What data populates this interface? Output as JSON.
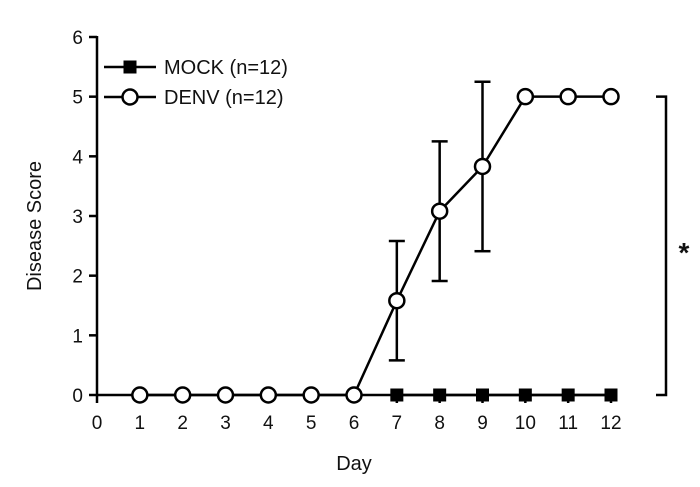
{
  "chart_data": {
    "type": "line",
    "xlabel": "Day",
    "ylabel": "Disease Score",
    "xlim": [
      0,
      12
    ],
    "ylim": [
      0,
      6
    ],
    "x_ticks": [
      0,
      1,
      2,
      3,
      4,
      5,
      6,
      7,
      8,
      9,
      10,
      11,
      12
    ],
    "y_ticks": [
      0,
      1,
      2,
      3,
      4,
      5,
      6
    ],
    "grid": false,
    "legend_position": "top-left",
    "series": [
      {
        "name": "MOCK (n=12)",
        "marker": "filled-square",
        "color": "#000000",
        "x": [
          7,
          8,
          9,
          10,
          11,
          12
        ],
        "y": [
          0,
          0,
          0,
          0,
          0,
          0
        ]
      },
      {
        "name": "DENV  (n=12)",
        "marker": "open-circle",
        "color": "#000000",
        "x": [
          1,
          2,
          3,
          4,
          5,
          6,
          7,
          8,
          9,
          10,
          11,
          12
        ],
        "y": [
          0,
          0,
          0,
          0,
          0,
          0,
          1.58,
          3.08,
          3.83,
          5,
          5,
          5
        ],
        "error": [
          0,
          0,
          0,
          0,
          0,
          0,
          1.0,
          1.17,
          1.42,
          0,
          0,
          0
        ]
      }
    ],
    "annotation": {
      "text": "*",
      "bracket_from": 0,
      "bracket_to": 5
    }
  }
}
